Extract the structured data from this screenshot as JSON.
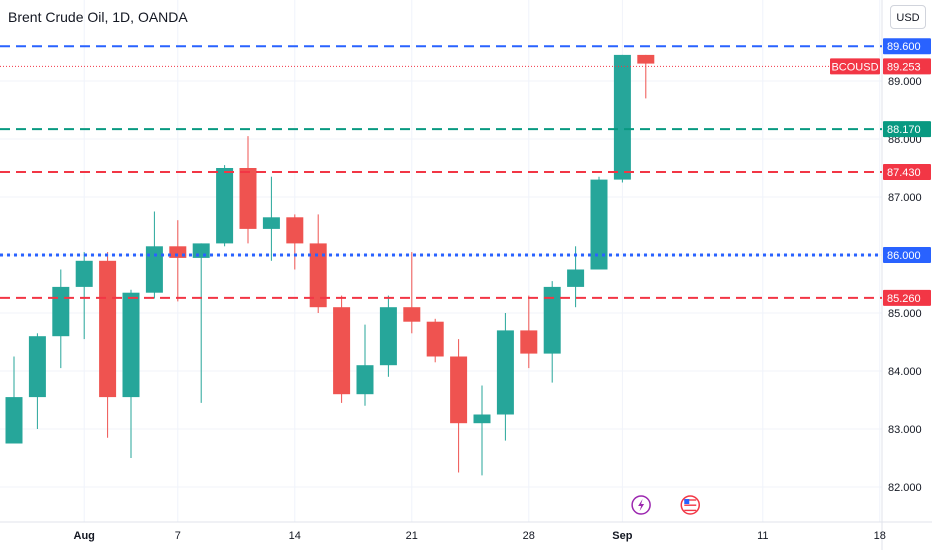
{
  "header": {
    "title": "Brent Crude Oil, 1D, OANDA",
    "currency": "USD"
  },
  "chart_data": {
    "type": "candlestick",
    "title": "Brent Crude Oil, 1D, OANDA",
    "symbol": "BCOUSD",
    "currency": "USD",
    "y_ticks": [
      82.0,
      83.0,
      84.0,
      85.0,
      86.0,
      87.0,
      88.0,
      89.0
    ],
    "y_tick_labels": [
      "82.000",
      "83.000",
      "84.000",
      "85.000",
      "86.000",
      "87.000",
      "88.000",
      "89.000"
    ],
    "x_ticks": [
      {
        "label": "Aug",
        "index": 3,
        "bold": true
      },
      {
        "label": "7",
        "index": 7,
        "bold": false
      },
      {
        "label": "14",
        "index": 12,
        "bold": false
      },
      {
        "label": "21",
        "index": 17,
        "bold": false
      },
      {
        "label": "28",
        "index": 22,
        "bold": false
      },
      {
        "label": "Sep",
        "index": 26,
        "bold": true
      },
      {
        "label": "11",
        "index": 32,
        "bold": false
      },
      {
        "label": "18",
        "index": 37,
        "bold": false
      }
    ],
    "grid": true,
    "candles": [
      {
        "o": 82.75,
        "h": 84.25,
        "l": 82.75,
        "c": 83.55
      },
      {
        "o": 83.55,
        "h": 84.65,
        "l": 83.0,
        "c": 84.6
      },
      {
        "o": 84.6,
        "h": 85.75,
        "l": 84.05,
        "c": 85.45
      },
      {
        "o": 85.45,
        "h": 86.05,
        "l": 84.55,
        "c": 85.9
      },
      {
        "o": 85.9,
        "h": 86.05,
        "l": 82.85,
        "c": 83.55
      },
      {
        "o": 83.55,
        "h": 85.4,
        "l": 82.5,
        "c": 85.35
      },
      {
        "o": 85.35,
        "h": 86.75,
        "l": 85.25,
        "c": 86.15
      },
      {
        "o": 86.15,
        "h": 86.6,
        "l": 85.2,
        "c": 85.95
      },
      {
        "o": 85.95,
        "h": 86.2,
        "l": 83.45,
        "c": 86.2
      },
      {
        "o": 86.2,
        "h": 87.55,
        "l": 86.15,
        "c": 87.5
      },
      {
        "o": 87.5,
        "h": 88.05,
        "l": 86.2,
        "c": 86.45
      },
      {
        "o": 86.45,
        "h": 87.35,
        "l": 85.9,
        "c": 86.65
      },
      {
        "o": 86.65,
        "h": 86.7,
        "l": 85.75,
        "c": 86.2
      },
      {
        "o": 86.2,
        "h": 86.7,
        "l": 85.0,
        "c": 85.1
      },
      {
        "o": 85.1,
        "h": 85.3,
        "l": 83.45,
        "c": 83.6
      },
      {
        "o": 83.6,
        "h": 84.8,
        "l": 83.4,
        "c": 84.1
      },
      {
        "o": 84.1,
        "h": 85.3,
        "l": 83.9,
        "c": 85.1
      },
      {
        "o": 85.1,
        "h": 86.05,
        "l": 84.65,
        "c": 84.85
      },
      {
        "o": 84.85,
        "h": 84.9,
        "l": 84.15,
        "c": 84.25
      },
      {
        "o": 84.25,
        "h": 84.55,
        "l": 82.25,
        "c": 83.1
      },
      {
        "o": 83.1,
        "h": 83.75,
        "l": 82.2,
        "c": 83.25
      },
      {
        "o": 83.25,
        "h": 85.0,
        "l": 82.8,
        "c": 84.7
      },
      {
        "o": 84.7,
        "h": 85.3,
        "l": 84.05,
        "c": 84.3
      },
      {
        "o": 84.3,
        "h": 85.55,
        "l": 83.8,
        "c": 85.45
      },
      {
        "o": 85.45,
        "h": 86.15,
        "l": 85.1,
        "c": 85.75
      },
      {
        "o": 85.75,
        "h": 87.35,
        "l": 85.75,
        "c": 87.3
      },
      {
        "o": 87.3,
        "h": 89.45,
        "l": 87.25,
        "c": 89.45
      },
      {
        "o": 89.45,
        "h": 89.45,
        "l": 88.7,
        "c": 89.3
      }
    ],
    "levels": [
      {
        "value": 89.6,
        "label": "89.600",
        "color": "#2962ff",
        "style": "dashed",
        "tag": ""
      },
      {
        "value": 89.253,
        "label": "89.253",
        "color": "#f23645",
        "style": "dotted-thin",
        "tag": "BCOUSD"
      },
      {
        "value": 88.17,
        "label": "88.170",
        "color": "#089981",
        "style": "dashed",
        "tag": ""
      },
      {
        "value": 87.43,
        "label": "87.430",
        "color": "#f23645",
        "style": "dashed",
        "tag": ""
      },
      {
        "value": 86.0,
        "label": "86.000",
        "color": "#2962ff",
        "style": "dotted",
        "tag": ""
      },
      {
        "value": 85.26,
        "label": "85.260",
        "color": "#f23645",
        "style": "dashed",
        "tag": ""
      }
    ],
    "colors": {
      "up": "#26a69a",
      "down": "#ef5350",
      "grid": "#f0f3fa",
      "axis": "#e0e3eb",
      "event_purple": "#9c27b0",
      "event_red": "#f23645"
    },
    "events": [
      {
        "index": 26.8,
        "icon": "lightning-event-icon"
      },
      {
        "index": 28.9,
        "icon": "us-flag-event-icon"
      }
    ]
  }
}
